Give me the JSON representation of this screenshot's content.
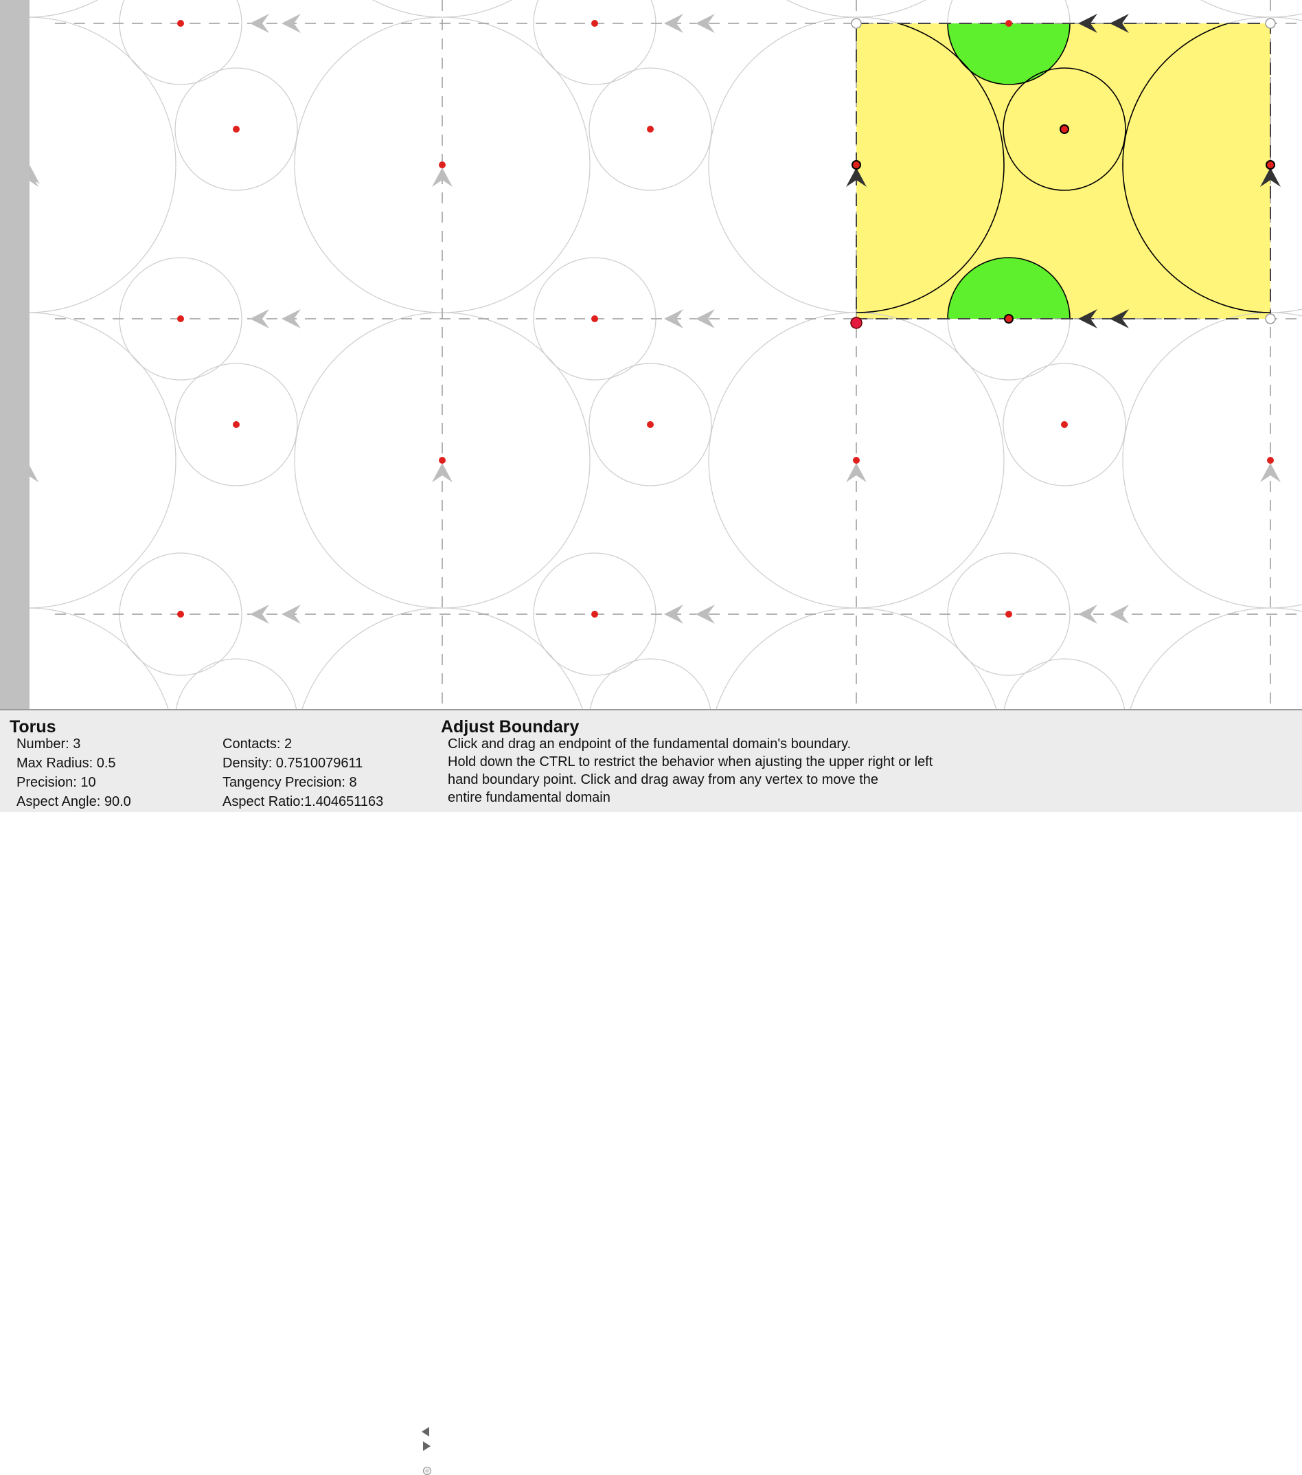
{
  "canvas": {
    "background": "#ffffff",
    "domain_fill": "#fff57a",
    "highlight_fill": "#5ef02c",
    "center_color": "#e0201c",
    "grid_color": "#9a9a9a",
    "circle_color": "#cfcfcf"
  },
  "panel": {
    "title": "Torus",
    "stats_left": [
      "Number: 3",
      "Max Radius: 0.5",
      "Precision: 10",
      "Aspect Angle: 90.0"
    ],
    "stats_right": [
      "Contacts: 2",
      "Density: 0.7510079611",
      "Tangency Precision: 8",
      "Aspect Ratio:1.404651163"
    ]
  },
  "tool": {
    "title": "Adjust Boundary",
    "description": [
      "Click and drag an endpoint of the fundamental domain's boundary.",
      "Hold down the CTRL to restrict the behavior when ajusting the upper right or left",
      "hand boundary point. Click and drag away from any vertex to move the",
      "entire fundamental domain"
    ]
  }
}
